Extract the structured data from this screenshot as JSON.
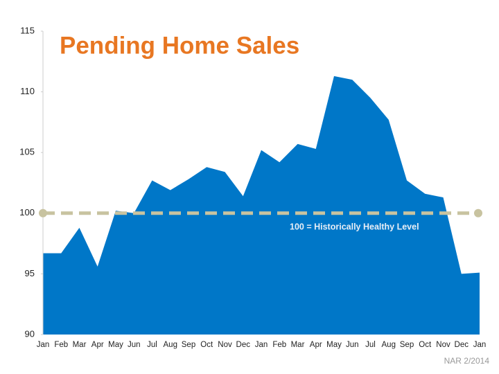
{
  "chart_data": {
    "type": "area",
    "title": "Pending Home Sales",
    "categories": [
      "Jan",
      "Feb",
      "Mar",
      "Apr",
      "May",
      "Jun",
      "Jul",
      "Aug",
      "Sep",
      "Oct",
      "Nov",
      "Dec",
      "Jan",
      "Feb",
      "Mar",
      "Apr",
      "May",
      "Jun",
      "Jul",
      "Aug",
      "Sep",
      "Oct",
      "Nov",
      "Dec",
      "Jan"
    ],
    "values": [
      96.7,
      96.7,
      98.8,
      95.6,
      100.2,
      100.0,
      102.7,
      101.9,
      102.8,
      103.8,
      103.4,
      101.4,
      105.2,
      104.2,
      105.7,
      105.3,
      111.3,
      111.0,
      109.5,
      107.7,
      102.7,
      101.6,
      101.3,
      95.0,
      95.1
    ],
    "color": "#0077c8",
    "ylim": [
      90,
      115
    ],
    "yticks": [
      90,
      95,
      100,
      105,
      110,
      115
    ],
    "grid": false,
    "reference_line": {
      "value": 100,
      "label": "100 = Historically Healthy Level",
      "color": "#c8c3a0"
    },
    "source": "NAR 2/2014"
  }
}
